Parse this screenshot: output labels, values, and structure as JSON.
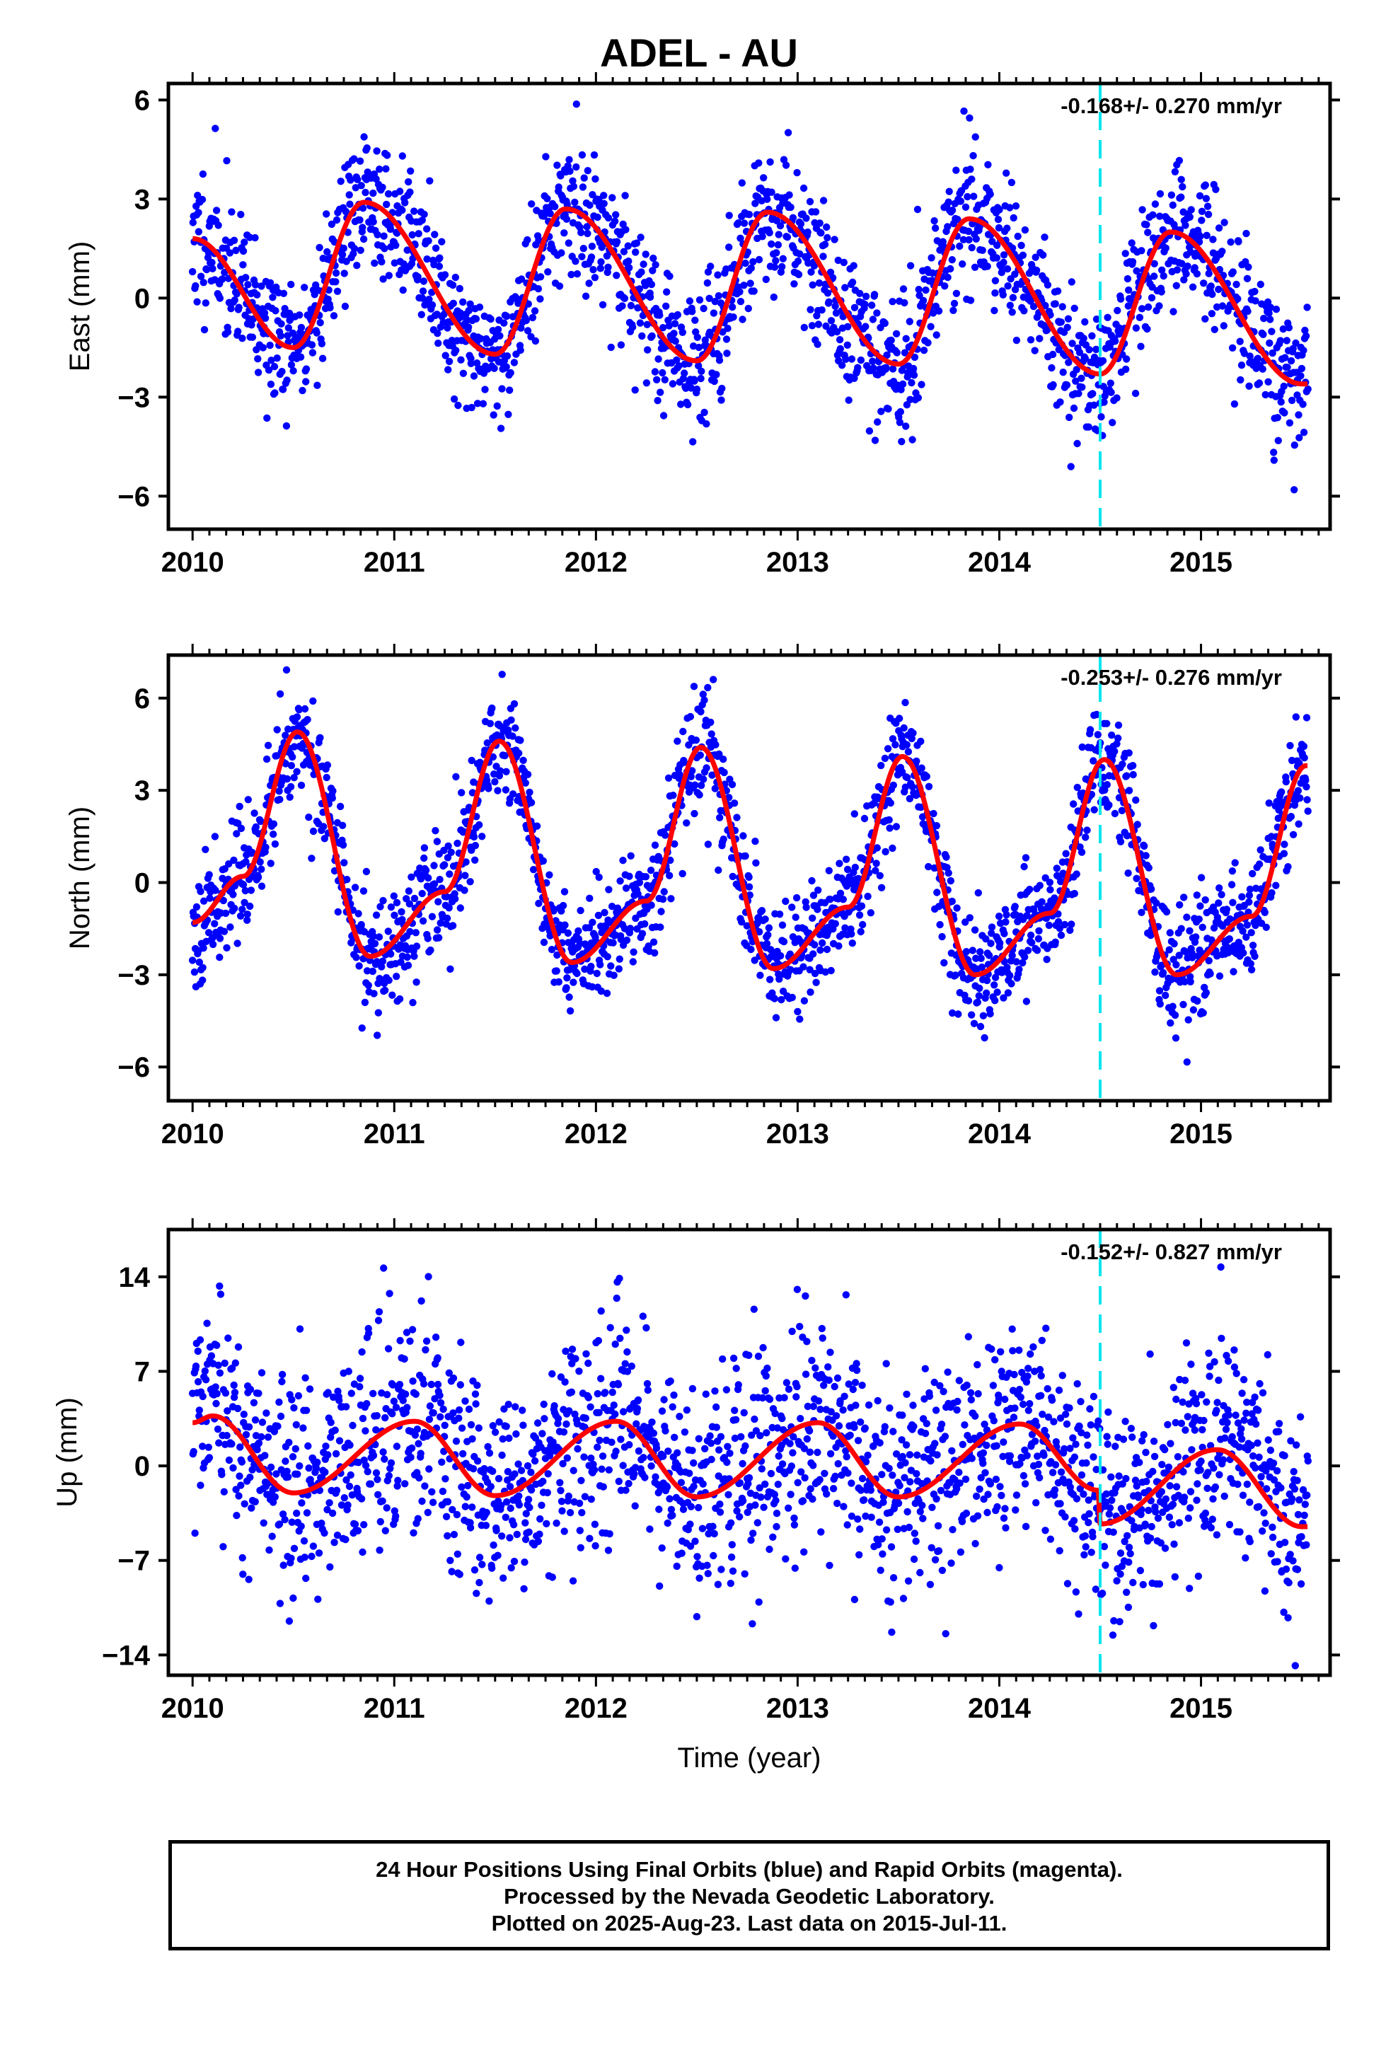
{
  "title": "ADEL - AU",
  "footer": {
    "line1": "24 Hour Positions Using Final Orbits (blue) and Rapid Orbits (magenta).",
    "line2": "Processed by the Nevada Geodetic Laboratory.",
    "line3": "Plotted on 2025-Aug-23. Last data on 2015-Jul-11."
  },
  "colors": {
    "final_orbits": "#0000ff",
    "fit": "#ff0000",
    "event_line": "#00e5ee"
  },
  "chart_data": [
    {
      "type": "scatter",
      "component": "East",
      "ylabel": "East (mm)",
      "xlabel": "",
      "rate": "-0.168+/- 0.270 mm/yr",
      "xlim": [
        2009.88,
        2015.64
      ],
      "ylim": [
        -7.0,
        6.5
      ],
      "yticks": [
        6,
        3,
        0,
        -3,
        -6
      ],
      "ytick_labels": [
        "6",
        "3",
        "0",
        "−3",
        "−6"
      ],
      "xticks": [
        2010,
        2011,
        2012,
        2013,
        2014,
        2015
      ],
      "xtick_labels": [
        "2010",
        "2011",
        "2012",
        "2013",
        "2014",
        "2015"
      ],
      "event_x": 2014.5,
      "seasonal": {
        "base": 0.4,
        "trend": -0.35,
        "annual_amp": 2.2,
        "annual_peak": 0.85,
        "semi_amp": 0.25,
        "semi_peak": 0.3
      },
      "fit_knots": [
        [
          2010.0,
          1.8
        ],
        [
          2010.5,
          -1.5
        ],
        [
          2010.85,
          2.9
        ],
        [
          2011.5,
          -1.7
        ],
        [
          2011.85,
          2.7
        ],
        [
          2012.5,
          -1.9
        ],
        [
          2012.85,
          2.6
        ],
        [
          2013.5,
          -2.0
        ],
        [
          2013.85,
          2.4
        ],
        [
          2014.5,
          -2.3
        ],
        [
          2014.85,
          2.0
        ],
        [
          2015.5,
          -2.6
        ]
      ],
      "scatter": {
        "count": 1950,
        "noise": 1.05,
        "seed": 11
      }
    },
    {
      "type": "scatter",
      "component": "North",
      "ylabel": "North (mm)",
      "xlabel": "",
      "rate": "-0.253+/- 0.276 mm/yr",
      "xlim": [
        2009.88,
        2015.64
      ],
      "ylim": [
        -7.1,
        7.4
      ],
      "yticks": [
        6,
        3,
        0,
        -3,
        -6
      ],
      "ytick_labels": [
        "6",
        "3",
        "0",
        "−3",
        "−6"
      ],
      "xticks": [
        2010,
        2011,
        2012,
        2013,
        2014,
        2015
      ],
      "xtick_labels": [
        "2010",
        "2011",
        "2012",
        "2013",
        "2014",
        "2015"
      ],
      "event_x": 2014.5,
      "fit_knots": [
        [
          2010.0,
          -1.3
        ],
        [
          2010.25,
          0.2
        ],
        [
          2010.52,
          4.9
        ],
        [
          2010.88,
          -2.4
        ],
        [
          2011.25,
          -0.3
        ],
        [
          2011.52,
          4.6
        ],
        [
          2011.88,
          -2.6
        ],
        [
          2012.25,
          -0.6
        ],
        [
          2012.52,
          4.4
        ],
        [
          2012.88,
          -2.8
        ],
        [
          2013.25,
          -0.8
        ],
        [
          2013.52,
          4.1
        ],
        [
          2013.88,
          -3.0
        ],
        [
          2014.25,
          -1.0
        ],
        [
          2014.52,
          4.0
        ],
        [
          2014.88,
          -3.0
        ],
        [
          2015.25,
          -1.1
        ],
        [
          2015.52,
          3.8
        ]
      ],
      "scatter": {
        "count": 1950,
        "noise": 0.95,
        "seed": 23
      }
    },
    {
      "type": "scatter",
      "component": "Up",
      "ylabel": "Up (mm)",
      "xlabel": "Time (year)",
      "rate": "-0.152+/- 0.827 mm/yr",
      "xlim": [
        2009.88,
        2015.64
      ],
      "ylim": [
        -15.5,
        17.5
      ],
      "yticks": [
        14,
        7,
        0,
        -7,
        -14
      ],
      "ytick_labels": [
        "14",
        "7",
        "0",
        "−7",
        "−14"
      ],
      "xticks": [
        2010,
        2011,
        2012,
        2013,
        2014,
        2015
      ],
      "xtick_labels": [
        "2010",
        "2011",
        "2012",
        "2013",
        "2014",
        "2015"
      ],
      "event_x": 2014.5,
      "offset_at_event": -2.5,
      "fit_knots": [
        [
          2010.0,
          3.2
        ],
        [
          2010.1,
          3.7
        ],
        [
          2010.5,
          -2.0
        ],
        [
          2011.1,
          3.3
        ],
        [
          2011.5,
          -2.2
        ],
        [
          2012.1,
          3.3
        ],
        [
          2012.5,
          -2.3
        ],
        [
          2013.1,
          3.2
        ],
        [
          2013.5,
          -2.3
        ],
        [
          2014.1,
          3.1
        ],
        [
          2014.49,
          -1.8
        ],
        [
          2014.5,
          -4.3
        ],
        [
          2015.08,
          1.2
        ],
        [
          2015.5,
          -4.5
        ]
      ],
      "scatter": {
        "count": 1950,
        "noise": 4.0,
        "seed": 37
      }
    }
  ]
}
